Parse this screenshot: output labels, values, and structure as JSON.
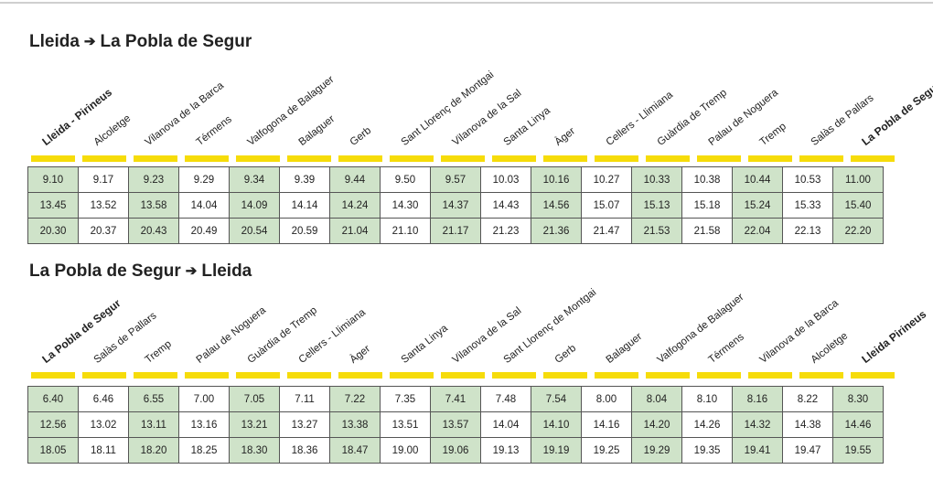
{
  "sections": [
    {
      "title_from": "Lleida",
      "title_to": "La Pobla de Segur",
      "stations": [
        "Lleida - Pirineus",
        "Alcoletge",
        "Vilanova de la Barca",
        "Térmens",
        "Valfogona de Balaguer",
        "Balaguer",
        "Gerb",
        "Sant Llorenç de Montgai",
        "Vilanova de la Sal",
        "Santa Linya",
        "Àger",
        "Cellers - Llimiana",
        "Guàrdia de Tremp",
        "Palau de Noguera",
        "Tremp",
        "Salàs de Pallars",
        "La Pobla de Segur"
      ],
      "bold_stations": [
        0,
        16
      ],
      "times": [
        [
          "9.10",
          "9.17",
          "9.23",
          "9.29",
          "9.34",
          "9.39",
          "9.44",
          "9.50",
          "9.57",
          "10.03",
          "10.16",
          "10.27",
          "10.33",
          "10.38",
          "10.44",
          "10.53",
          "11.00"
        ],
        [
          "13.45",
          "13.52",
          "13.58",
          "14.04",
          "14.09",
          "14.14",
          "14.24",
          "14.30",
          "14.37",
          "14.43",
          "14.56",
          "15.07",
          "15.13",
          "15.18",
          "15.24",
          "15.33",
          "15.40"
        ],
        [
          "20.30",
          "20.37",
          "20.43",
          "20.49",
          "20.54",
          "20.59",
          "21.04",
          "21.10",
          "21.17",
          "21.23",
          "21.36",
          "21.47",
          "21.53",
          "21.58",
          "22.04",
          "22.13",
          "22.20"
        ]
      ]
    },
    {
      "title_from": "La Pobla de Segur",
      "title_to": "Lleida",
      "stations": [
        "La Pobla de Segur",
        "Salàs de Pallars",
        "Tremp",
        "Palau de Noguera",
        "Guàrdia de Tremp",
        "Cellers - Llimiana",
        "Àger",
        "Santa Linya",
        "Vilanova de la Sal",
        "Sant Llorenç de Montgai",
        "Gerb",
        "Balaguer",
        "Valfogona de Balaguer",
        "Térmens",
        "Vilanova de la Barca",
        "Alcoletge",
        "Lleida Pirineus"
      ],
      "bold_stations": [
        0,
        16
      ],
      "times": [
        [
          "6.40",
          "6.46",
          "6.55",
          "7.00",
          "7.05",
          "7.11",
          "7.22",
          "7.35",
          "7.41",
          "7.48",
          "7.54",
          "8.00",
          "8.04",
          "8.10",
          "8.16",
          "8.22",
          "8.30"
        ],
        [
          "12.56",
          "13.02",
          "13.11",
          "13.16",
          "13.21",
          "13.27",
          "13.38",
          "13.51",
          "13.57",
          "14.04",
          "14.10",
          "14.16",
          "14.20",
          "14.26",
          "14.32",
          "14.38",
          "14.46"
        ],
        [
          "18.05",
          "18.11",
          "18.20",
          "18.25",
          "18.30",
          "18.36",
          "18.47",
          "19.00",
          "19.06",
          "19.13",
          "19.19",
          "19.25",
          "19.29",
          "19.35",
          "19.41",
          "19.47",
          "19.55"
        ]
      ]
    }
  ],
  "colors": {
    "highlight_column": "#cfe3c9",
    "stripe": "#f6dc0a",
    "border": "#555555"
  },
  "title_arrow_icon": "right-arrow-icon"
}
